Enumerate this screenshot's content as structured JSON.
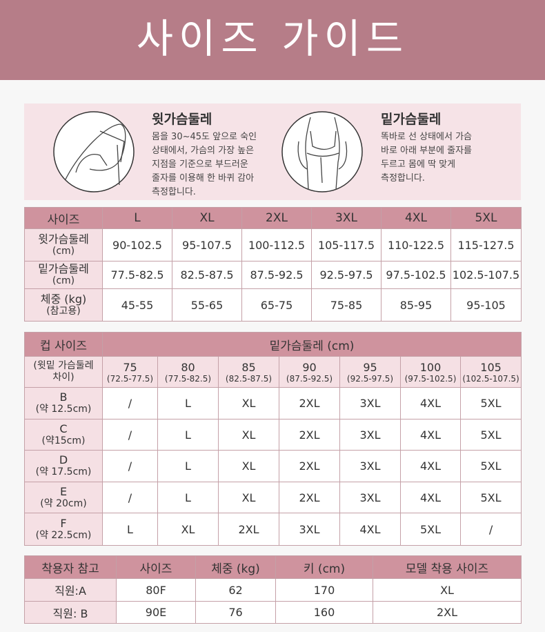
{
  "header": {
    "title": "사이즈 가이드"
  },
  "guides": [
    {
      "title": "윗가슴둘레",
      "lines": [
        "몸을 30~45도 앞으로 숙인",
        "상태에서, 가슴의 가장 높은",
        "지점을 기준으로 부드러운",
        "줄자를 이용해 한 바퀴 감아",
        "측정합니다."
      ]
    },
    {
      "title": "밑가슴둘레",
      "lines": [
        "똑바로 선 상태에서 가슴",
        "바로 아래 부분에 줄자를",
        "두르고 몸에 딱 맞게",
        "측정합니다."
      ]
    }
  ],
  "size_table": {
    "header": [
      "사이즈",
      "L",
      "XL",
      "2XL",
      "3XL",
      "4XL",
      "5XL"
    ],
    "rows": [
      {
        "label": [
          "윗가슴둘레",
          "(cm)"
        ],
        "cells": [
          "90-102.5",
          "95-107.5",
          "100-112.5",
          "105-117.5",
          "110-122.5",
          "115-127.5"
        ]
      },
      {
        "label": [
          "밑가슴둘레",
          "(cm)"
        ],
        "cells": [
          "77.5-82.5",
          "82.5-87.5",
          "87.5-92.5",
          "92.5-97.5",
          "97.5-102.5",
          "102.5-107.5"
        ]
      },
      {
        "label": [
          "체중 (kg)",
          "(참고용)"
        ],
        "cells": [
          "45-55",
          "55-65",
          "65-75",
          "75-85",
          "85-95",
          "95-105"
        ]
      }
    ]
  },
  "cup_table": {
    "corner": {
      "title": "컵 사이즈",
      "note": [
        "(윗밑 가슴둘레",
        "차이)"
      ]
    },
    "group_header": "밑가슴둘레 (cm)",
    "columns": [
      {
        "size": "75",
        "range": "(72.5-77.5)"
      },
      {
        "size": "80",
        "range": "(77.5-82.5)"
      },
      {
        "size": "85",
        "range": "(82.5-87.5)"
      },
      {
        "size": "90",
        "range": "(87.5-92.5)"
      },
      {
        "size": "95",
        "range": "(92.5-97.5)"
      },
      {
        "size": "100",
        "range": "(97.5-102.5)"
      },
      {
        "size": "105",
        "range": "(102.5-107.5)"
      }
    ],
    "rows": [
      {
        "cup": "B",
        "diff": "(약 12.5cm)",
        "cells": [
          "/",
          "L",
          "XL",
          "2XL",
          "3XL",
          "4XL",
          "5XL"
        ]
      },
      {
        "cup": "C",
        "diff": "(약15cm)",
        "cells": [
          "/",
          "L",
          "XL",
          "2XL",
          "3XL",
          "4XL",
          "5XL"
        ]
      },
      {
        "cup": "D",
        "diff": "(약 17.5cm)",
        "cells": [
          "/",
          "L",
          "XL",
          "2XL",
          "3XL",
          "4XL",
          "5XL"
        ]
      },
      {
        "cup": "E",
        "diff": "(약 20cm)",
        "cells": [
          "/",
          "L",
          "XL",
          "2XL",
          "3XL",
          "4XL",
          "5XL"
        ]
      },
      {
        "cup": "F",
        "diff": "(약 22.5cm)",
        "cells": [
          "L",
          "XL",
          "2XL",
          "3XL",
          "4XL",
          "5XL",
          "/"
        ]
      }
    ]
  },
  "model_table": {
    "header": [
      "착용자 참고",
      "사이즈",
      "체중 (kg)",
      "키 (cm)",
      "모델 착용 사이즈"
    ],
    "rows": [
      [
        "직원:A",
        "80F",
        62,
        170,
        "XL"
      ],
      [
        "직원: B",
        "90E",
        76,
        160,
        "2XL"
      ]
    ]
  }
}
